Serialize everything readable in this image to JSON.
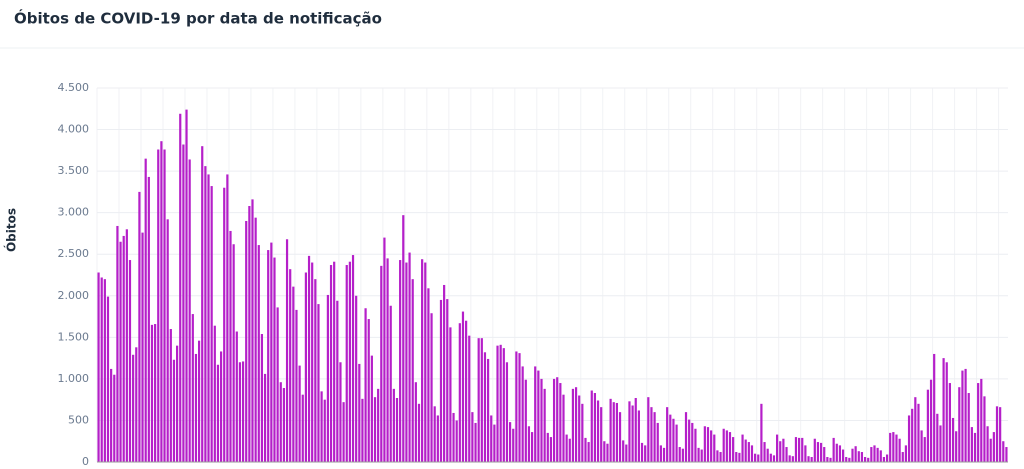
{
  "chart_data": {
    "type": "bar",
    "title": "Óbitos de COVID-19 por data de notificação",
    "y_label": "Óbitos",
    "color": "#b51fc9",
    "ylim": [
      0,
      4500
    ],
    "yticks": [
      0,
      500,
      {
        "value": 1000,
        "label": "1.000"
      },
      {
        "value": 1500,
        "label": "1.500"
      },
      {
        "value": 2000,
        "label": "2.000"
      },
      {
        "value": 2500,
        "label": "2.500"
      },
      {
        "value": 3000,
        "label": "3.000"
      },
      {
        "value": 3500,
        "label": "3.500"
      },
      {
        "value": 4000,
        "label": "4.000"
      },
      {
        "value": 4500,
        "label": "4.500"
      }
    ],
    "grid": true,
    "values": [
      2280,
      2220,
      2200,
      1990,
      1120,
      1050,
      2840,
      2650,
      2720,
      2800,
      2430,
      1290,
      1380,
      3250,
      2760,
      3650,
      3430,
      1650,
      1660,
      3760,
      3860,
      3760,
      2920,
      1600,
      1230,
      1400,
      4190,
      3820,
      4240,
      3640,
      1780,
      1300,
      1460,
      3800,
      3560,
      3460,
      3320,
      1640,
      1170,
      1330,
      3300,
      3460,
      2780,
      2620,
      1570,
      1200,
      1210,
      2900,
      3080,
      3160,
      2940,
      2610,
      1540,
      1060,
      2550,
      2640,
      2460,
      1860,
      960,
      890,
      2680,
      2320,
      2110,
      1830,
      1160,
      810,
      2280,
      2480,
      2400,
      2200,
      1900,
      850,
      750,
      2010,
      2370,
      2410,
      1940,
      1200,
      720,
      2370,
      2410,
      2490,
      2000,
      1180,
      760,
      1850,
      1720,
      1280,
      780,
      880,
      2360,
      2700,
      2450,
      1880,
      880,
      770,
      2430,
      2970,
      2400,
      2520,
      2200,
      960,
      700,
      2440,
      2400,
      2090,
      1790,
      670,
      560,
      1950,
      2130,
      1960,
      1620,
      590,
      500,
      1670,
      1810,
      1700,
      1520,
      600,
      470,
      1490,
      1490,
      1320,
      1240,
      560,
      450,
      1400,
      1410,
      1370,
      1200,
      480,
      400,
      1330,
      1310,
      1150,
      990,
      430,
      360,
      1150,
      1100,
      1000,
      880,
      350,
      300,
      1000,
      1020,
      950,
      810,
      330,
      280,
      880,
      900,
      800,
      700,
      290,
      240,
      860,
      830,
      740,
      660,
      250,
      220,
      760,
      720,
      710,
      600,
      260,
      210,
      730,
      680,
      770,
      620,
      230,
      200,
      780,
      660,
      600,
      470,
      200,
      170,
      660,
      570,
      520,
      450,
      180,
      160,
      600,
      510,
      470,
      400,
      170,
      150,
      430,
      420,
      380,
      330,
      140,
      120,
      400,
      380,
      360,
      300,
      120,
      110,
      330,
      270,
      240,
      200,
      100,
      90,
      700,
      240,
      160,
      100,
      80,
      330,
      250,
      280,
      180,
      80,
      70,
      300,
      290,
      290,
      200,
      70,
      60,
      280,
      240,
      230,
      180,
      60,
      50,
      290,
      220,
      200,
      150,
      60,
      50,
      160,
      190,
      130,
      120,
      60,
      50,
      180,
      200,
      170,
      140,
      60,
      90,
      350,
      360,
      330,
      280,
      120,
      200,
      560,
      640,
      780,
      700,
      380,
      300,
      870,
      990,
      1300,
      580,
      440,
      1250,
      1200,
      950,
      530,
      370,
      900,
      1100,
      1120,
      830,
      420,
      350,
      950,
      1000,
      790,
      430,
      280,
      360,
      670,
      660,
      250,
      180
    ]
  }
}
